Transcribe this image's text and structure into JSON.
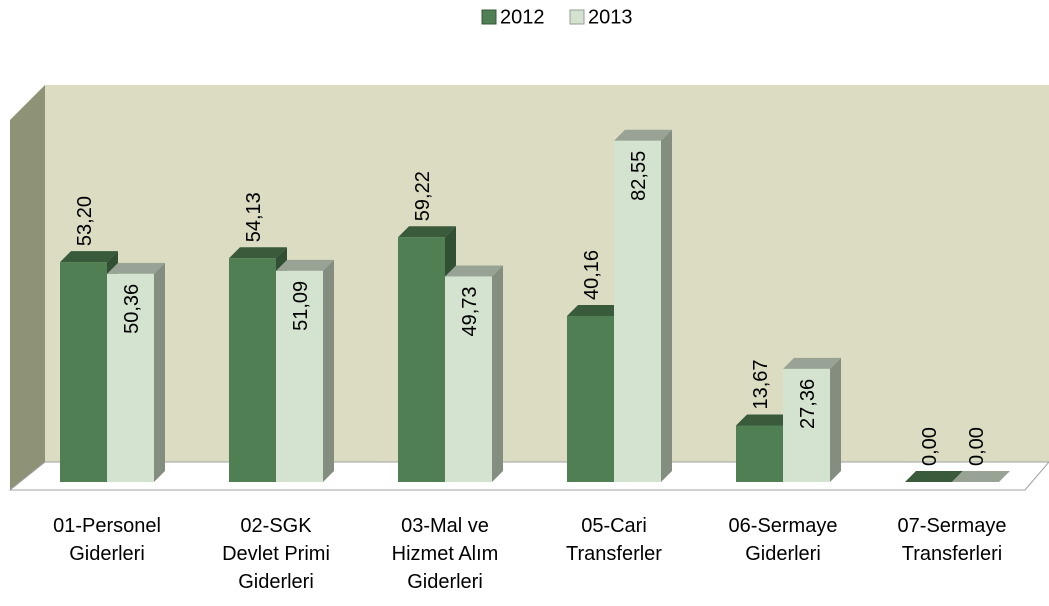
{
  "chart_data": {
    "type": "bar",
    "categories": [
      "01-Personel\nGiderleri",
      "02-SGK\nDevlet Primi\nGiderleri",
      "03-Mal ve\nHizmet Alım\nGiderleri",
      "05-Cari\nTransferler",
      "06-Sermaye\nGiderleri",
      "07-Sermaye\nTransferleri"
    ],
    "series": [
      {
        "name": "2012",
        "color": "#4f7f52",
        "values": [
          53.2,
          54.13,
          59.22,
          40.16,
          13.67,
          0.0
        ],
        "value_labels": [
          "53,20",
          "54,13",
          "59,22",
          "40,16",
          "13,67",
          "0,00"
        ]
      },
      {
        "name": "2013",
        "color": "#d3e3cf",
        "values": [
          50.36,
          51.09,
          49.73,
          82.55,
          27.36,
          0.0
        ],
        "value_labels": [
          "50,36",
          "51,09",
          "49,73",
          "82,55",
          "27,36",
          "0,00"
        ]
      }
    ],
    "ylim": [
      0,
      90
    ],
    "legend": "top"
  }
}
